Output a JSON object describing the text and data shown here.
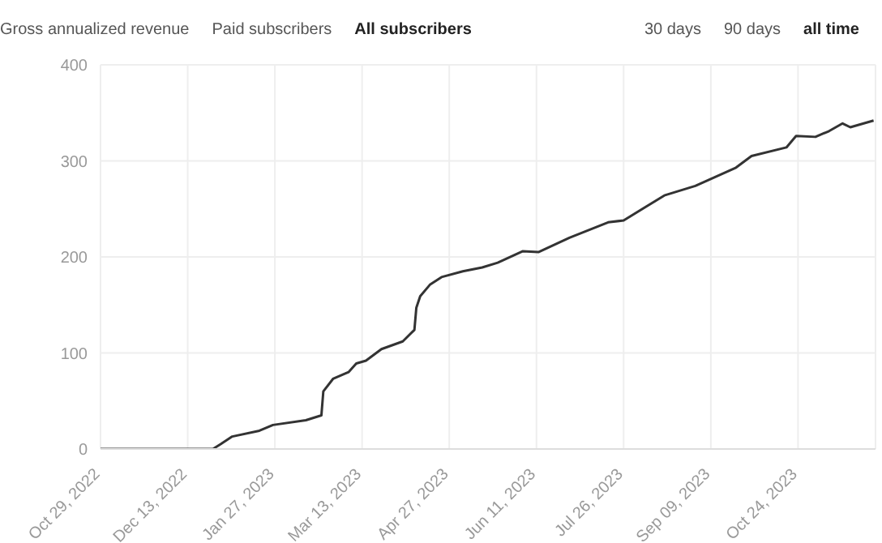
{
  "chart_data": {
    "type": "line",
    "annotations": [
      "Gross annualized revenue",
      "Paid subscribers",
      "All subscribers",
      "30 days",
      "90 days",
      "all time"
    ],
    "x": [
      "2022-10-29",
      "2022-12-26",
      "2022-12-30",
      "2023-01-05",
      "2023-01-19",
      "2023-01-26",
      "2023-02-12",
      "2023-02-20",
      "2023-02-21",
      "2023-02-26",
      "2023-03-06",
      "2023-03-10",
      "2023-03-15",
      "2023-03-23",
      "2023-04-03",
      "2023-04-09",
      "2023-04-10",
      "2023-04-12",
      "2023-04-17",
      "2023-04-23",
      "2023-05-04",
      "2023-05-14",
      "2023-05-22",
      "2023-06-04",
      "2023-06-12",
      "2023-06-28",
      "2023-07-18",
      "2023-07-26",
      "2023-08-16",
      "2023-09-01",
      "2023-09-22",
      "2023-09-30",
      "2023-10-18",
      "2023-10-23",
      "2023-11-02",
      "2023-11-09",
      "2023-11-16",
      "2023-11-20",
      "2023-12-02"
    ],
    "series": [
      {
        "color": "#333333",
        "values": [
          0,
          0,
          5,
          13,
          19,
          25,
          30,
          35,
          60,
          73,
          80,
          89,
          92,
          104,
          112,
          124,
          147,
          159,
          171,
          179,
          185,
          189,
          194,
          206,
          205,
          220,
          236,
          238,
          264,
          274,
          293,
          305,
          314,
          326,
          325,
          331,
          339,
          335,
          342
        ]
      }
    ],
    "xlim": [
      "2022-10-29",
      "2023-12-03"
    ],
    "xticks": [
      {
        "value": "2022-10-29",
        "label": "Oct 29, 2022"
      },
      {
        "value": "2022-12-13",
        "label": "Dec 13, 2022"
      },
      {
        "value": "2023-01-27",
        "label": "Jan 27, 2023"
      },
      {
        "value": "2023-03-13",
        "label": "Mar 13, 2023"
      },
      {
        "value": "2023-04-27",
        "label": "Apr 27, 2023"
      },
      {
        "value": "2023-06-11",
        "label": "Jun 11, 2023"
      },
      {
        "value": "2023-07-26",
        "label": "Jul 26, 2023"
      },
      {
        "value": "2023-09-09",
        "label": "Sep 09, 2023"
      },
      {
        "value": "2023-10-24",
        "label": "Oct 24, 2023"
      }
    ],
    "ylim": [
      0,
      400
    ],
    "yticks": [
      0,
      100,
      200,
      300,
      400
    ],
    "grid": true,
    "marker": "none",
    "line_style": "solid"
  }
}
